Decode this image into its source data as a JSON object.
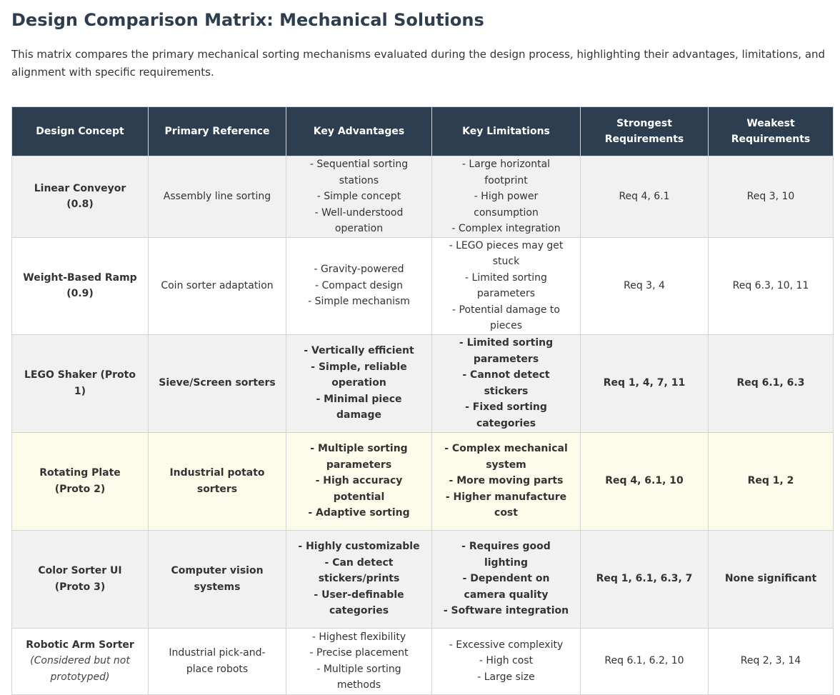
{
  "title": "Design Comparison Matrix: Mechanical Solutions",
  "intro": "This matrix compares the primary mechanical sorting mechanisms evaluated during the design process, highlighting their advantages, limitations, and alignment with specific requirements.",
  "table": {
    "headers": {
      "concept": "Design Concept",
      "reference": "Primary Reference",
      "advantages": "Key Advantages",
      "limitations": "Key Limitations",
      "strongest_1": "Strongest",
      "strongest_2": "Requirements",
      "weakest_1": "Weakest",
      "weakest_2": "Requirements"
    },
    "rows": [
      {
        "concept": "Linear Conveyor (0.8)",
        "reference": "Assembly line sorting",
        "advantages": [
          "- Sequential sorting stations",
          "- Simple concept",
          "- Well-understood operation"
        ],
        "limitations": [
          "- Large horizontal footprint",
          "- High power consumption",
          "- Complex integration"
        ],
        "strongest": "Req 4, 6.1",
        "weakest": "Req 3, 10"
      },
      {
        "concept": "Weight-Based Ramp (0.9)",
        "reference": "Coin sorter adaptation",
        "advantages": [
          "- Gravity-powered",
          "- Compact design",
          "- Simple mechanism"
        ],
        "limitations": [
          "- LEGO pieces may get stuck",
          "- Limited sorting parameters",
          "- Potential damage to pieces"
        ],
        "strongest": "Req 3, 4",
        "weakest": "Req 6.3, 10, 11"
      },
      {
        "concept": "LEGO Shaker (Proto 1)",
        "reference": "Sieve/Screen sorters",
        "advantages": [
          "- Vertically efficient",
          "- Simple, reliable operation",
          "- Minimal piece damage"
        ],
        "limitations": [
          "- Limited sorting parameters",
          "- Cannot detect stickers",
          "- Fixed sorting categories"
        ],
        "strongest": "Req 1, 4, 7, 11",
        "weakest": "Req 6.1, 6.3"
      },
      {
        "concept": "Rotating Plate (Proto 2)",
        "reference": "Industrial potato sorters",
        "advantages": [
          "- Multiple sorting parameters",
          "- High accuracy potential",
          "- Adaptive sorting"
        ],
        "limitations": [
          "- Complex mechanical system",
          "- More moving parts",
          "- Higher manufacture cost"
        ],
        "strongest": "Req 4, 6.1, 10",
        "weakest": "Req 1, 2"
      },
      {
        "concept": "Color Sorter UI (Proto 3)",
        "reference": "Computer vision systems",
        "advantages": [
          "- Highly customizable",
          "- Can detect stickers/prints",
          "- User-definable categories"
        ],
        "limitations": [
          "- Requires good lighting",
          "- Dependent on camera quality",
          "- Software integration"
        ],
        "strongest": "Req 1, 6.1, 6.3, 7",
        "weakest": "None significant"
      },
      {
        "concept": "Robotic Arm Sorter",
        "concept_note": "(Considered but not prototyped)",
        "reference": "Industrial pick-and-place robots",
        "advantages": [
          "- Highest flexibility",
          "- Precise placement",
          "- Multiple sorting methods"
        ],
        "limitations": [
          "- Excessive complexity",
          "- High cost",
          "- Large size"
        ],
        "strongest": "Req 6.1, 6.2, 10",
        "weakest": "Req 2, 3, 14"
      }
    ]
  }
}
